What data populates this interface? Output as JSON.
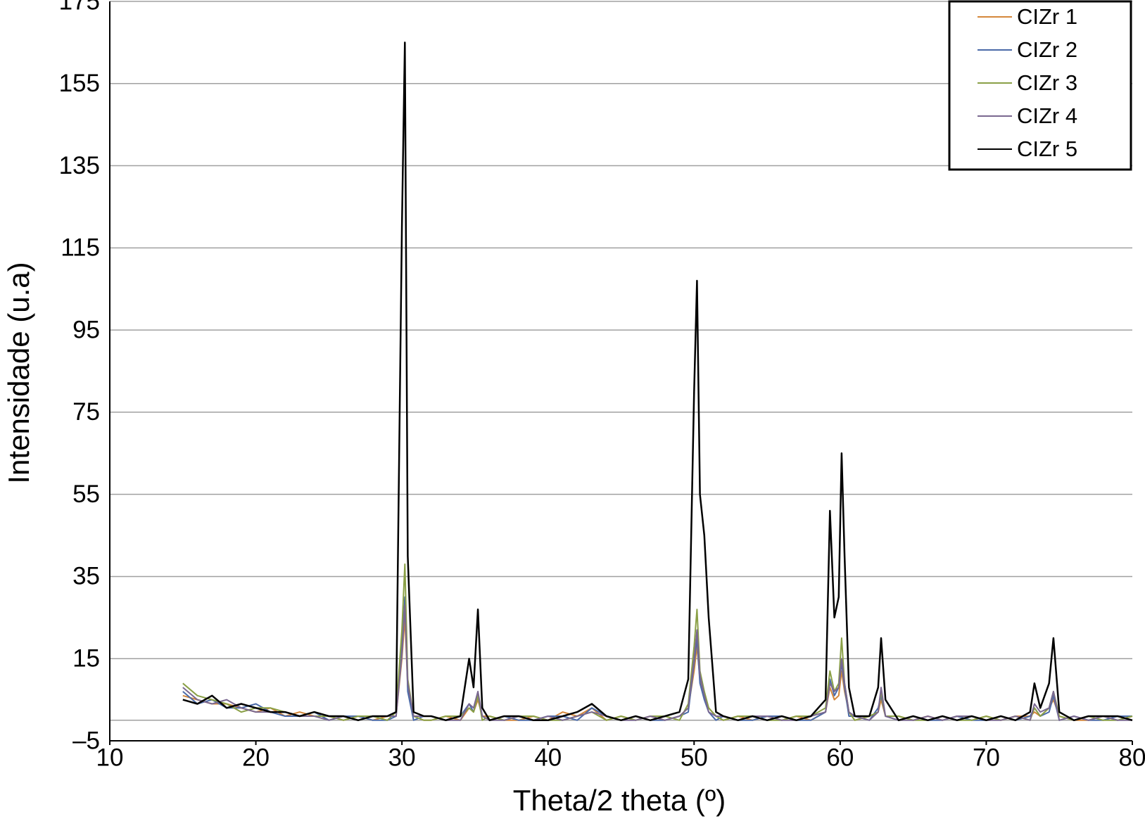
{
  "chart_data": {
    "type": "line",
    "x_label": "Theta/2 theta (º)",
    "y_label": "Intensidade (u.a)",
    "xlim": [
      10,
      80
    ],
    "xticks": [
      10,
      20,
      30,
      40,
      50,
      60,
      70,
      80
    ],
    "ylim": [
      -5,
      175
    ],
    "yticks": [
      {
        "value": -5,
        "label": "–5"
      },
      15,
      35,
      55,
      75,
      95,
      115,
      135,
      155,
      175
    ],
    "grid": true,
    "legend": "top-right",
    "x": [
      15,
      16,
      17,
      18,
      19,
      20,
      21,
      22,
      23,
      24,
      25,
      26,
      27,
      28,
      29,
      29.6,
      30,
      30.2,
      30.4,
      30.8,
      31.5,
      32,
      33,
      34,
      34.6,
      34.9,
      35.2,
      35.5,
      36,
      37,
      38,
      39,
      40,
      41,
      42,
      43,
      44,
      45,
      46,
      47,
      48,
      49,
      49.6,
      50,
      50.2,
      50.4,
      50.7,
      51,
      51.5,
      52,
      53,
      54,
      55,
      56,
      57,
      58,
      59,
      59.3,
      59.6,
      59.9,
      60.1,
      60.3,
      60.6,
      61,
      62,
      62.6,
      62.8,
      63.1,
      64,
      65,
      66,
      67,
      68,
      69,
      70,
      71,
      72,
      73,
      73.3,
      73.7,
      74.3,
      74.6,
      75,
      76,
      77,
      78,
      79,
      80
    ],
    "series": [
      {
        "name": "CIZr 1",
        "color": "#d4873a",
        "values": [
          6,
          5,
          4,
          4,
          3,
          2,
          3,
          1,
          2,
          1,
          1,
          0,
          1,
          0,
          1,
          1,
          15,
          25,
          8,
          1,
          0,
          0,
          1,
          0,
          3,
          2,
          5,
          1,
          1,
          0,
          0,
          1,
          0,
          2,
          1,
          3,
          0,
          1,
          0,
          1,
          0,
          1,
          3,
          12,
          18,
          10,
          6,
          3,
          1,
          0,
          1,
          0,
          1,
          0,
          1,
          0,
          2,
          8,
          5,
          6,
          12,
          7,
          2,
          0,
          1,
          2,
          5,
          1,
          1,
          0,
          1,
          0,
          1,
          0,
          1,
          0,
          1,
          1,
          2,
          1,
          3,
          5,
          1,
          0,
          0,
          1,
          0,
          1
        ]
      },
      {
        "name": "CIZr 2",
        "color": "#4a6aa8",
        "values": [
          7,
          4,
          5,
          3,
          3,
          4,
          2,
          1,
          1,
          2,
          0,
          1,
          1,
          0,
          0,
          1,
          18,
          30,
          7,
          0,
          1,
          1,
          0,
          1,
          4,
          2,
          6,
          1,
          0,
          1,
          0,
          0,
          1,
          1,
          0,
          3,
          1,
          0,
          1,
          0,
          0,
          1,
          2,
          14,
          20,
          9,
          5,
          2,
          0,
          1,
          0,
          0,
          1,
          1,
          0,
          0,
          2,
          10,
          6,
          8,
          14,
          8,
          1,
          1,
          0,
          3,
          6,
          1,
          0,
          1,
          0,
          0,
          1,
          0,
          0,
          1,
          0,
          1,
          3,
          1,
          2,
          6,
          0,
          1,
          0,
          0,
          1,
          1
        ]
      },
      {
        "name": "CIZr 3",
        "color": "#8aa046",
        "values": [
          9,
          6,
          5,
          4,
          2,
          3,
          3,
          2,
          1,
          1,
          1,
          0,
          1,
          1,
          0,
          2,
          22,
          38,
          10,
          1,
          0,
          0,
          1,
          1,
          3,
          2,
          6,
          0,
          1,
          0,
          1,
          1,
          0,
          0,
          1,
          2,
          0,
          1,
          0,
          1,
          1,
          0,
          4,
          18,
          27,
          12,
          7,
          3,
          1,
          0,
          1,
          1,
          0,
          0,
          1,
          1,
          3,
          12,
          7,
          9,
          20,
          9,
          2,
          0,
          1,
          2,
          7,
          1,
          1,
          0,
          0,
          1,
          0,
          0,
          1,
          0,
          1,
          0,
          3,
          1,
          3,
          7,
          1,
          0,
          1,
          0,
          0,
          1
        ]
      },
      {
        "name": "CIZr 4",
        "color": "#7a6890",
        "values": [
          8,
          5,
          4,
          5,
          3,
          2,
          2,
          2,
          1,
          1,
          0,
          1,
          0,
          1,
          1,
          1,
          16,
          28,
          9,
          1,
          1,
          1,
          0,
          0,
          4,
          3,
          7,
          1,
          0,
          0,
          1,
          0,
          1,
          0,
          1,
          2,
          1,
          0,
          0,
          1,
          0,
          1,
          3,
          15,
          22,
          11,
          6,
          2,
          1,
          1,
          0,
          1,
          1,
          0,
          0,
          1,
          2,
          9,
          7,
          8,
          15,
          9,
          2,
          1,
          0,
          2,
          8,
          1,
          0,
          0,
          1,
          0,
          1,
          1,
          0,
          0,
          1,
          0,
          4,
          2,
          3,
          7,
          0,
          1,
          0,
          1,
          0,
          0
        ]
      },
      {
        "name": "CIZr 5",
        "color": "#000000",
        "values": [
          5,
          4,
          6,
          3,
          4,
          3,
          2,
          2,
          1,
          2,
          1,
          1,
          0,
          1,
          1,
          2,
          120,
          165,
          40,
          2,
          1,
          1,
          0,
          1,
          15,
          8,
          27,
          3,
          0,
          1,
          1,
          0,
          0,
          1,
          2,
          4,
          1,
          0,
          1,
          0,
          1,
          2,
          10,
          80,
          107,
          55,
          45,
          25,
          2,
          1,
          0,
          1,
          0,
          1,
          0,
          1,
          5,
          51,
          25,
          30,
          65,
          40,
          8,
          1,
          1,
          8,
          20,
          5,
          0,
          1,
          0,
          1,
          0,
          1,
          0,
          1,
          0,
          2,
          9,
          3,
          9,
          20,
          2,
          0,
          1,
          1,
          1,
          0
        ]
      }
    ]
  }
}
